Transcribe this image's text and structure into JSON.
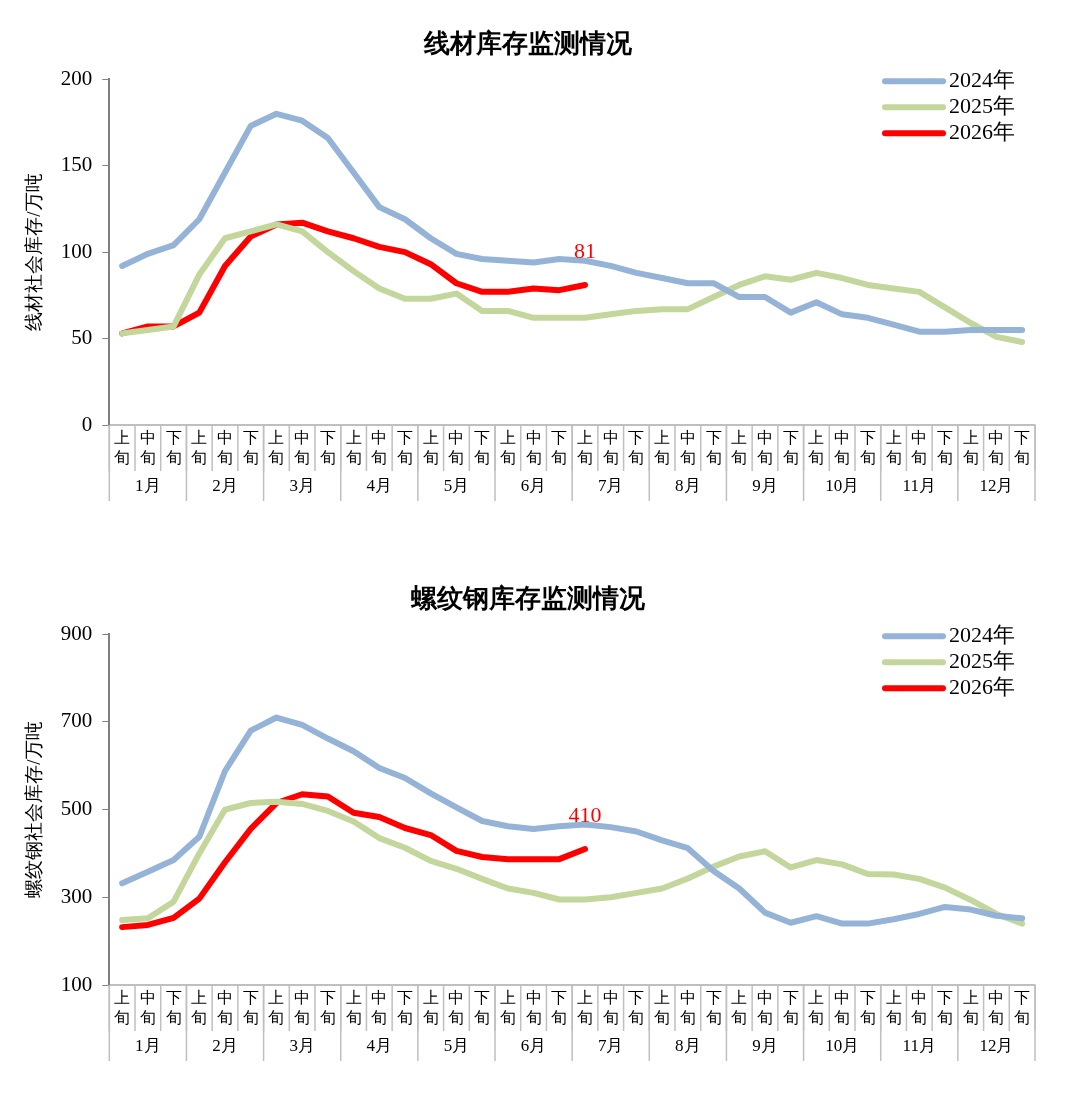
{
  "chart_data": [
    {
      "type": "line",
      "title": "线材库存监测情况",
      "ylabel": "线材社会库存/万吨",
      "categories": [
        "上旬",
        "中旬",
        "下旬",
        "上旬",
        "中旬",
        "下旬",
        "上旬",
        "中旬",
        "下旬",
        "上旬",
        "中旬",
        "下旬",
        "上旬",
        "中旬",
        "下旬",
        "上旬",
        "中旬",
        "下旬",
        "上旬",
        "中旬",
        "下旬",
        "上旬",
        "中旬",
        "下旬",
        "上旬",
        "中旬",
        "下旬",
        "上旬",
        "中旬",
        "下旬",
        "上旬",
        "中旬",
        "下旬",
        "上旬",
        "中旬",
        "下旬"
      ],
      "annotations": [
        "1月",
        "2月",
        "3月",
        "4月",
        "5月",
        "6月",
        "7月",
        "8月",
        "9月",
        "10月",
        "11月",
        "12月"
      ],
      "series": [
        {
          "name": "2024年",
          "color": "#95b3d7",
          "values": [
            92,
            99,
            104,
            119,
            146,
            173,
            180,
            176,
            166,
            146,
            126,
            119,
            108,
            99,
            96,
            95,
            94,
            96,
            95,
            92,
            88,
            85,
            82,
            82,
            74,
            74,
            65,
            71,
            64,
            62,
            58,
            54,
            54,
            55,
            55,
            55
          ]
        },
        {
          "name": "2025年",
          "color": "#c3d69b",
          "values": [
            53,
            55,
            57,
            87,
            108,
            112,
            116,
            112,
            100,
            89,
            79,
            73,
            73,
            76,
            66,
            66,
            62,
            62,
            62,
            64,
            66,
            67,
            67,
            74,
            81,
            86,
            84,
            88,
            85,
            81,
            79,
            77,
            68,
            59,
            51,
            48
          ]
        },
        {
          "name": "2026年",
          "color": "#ff0000",
          "values": [
            53,
            57,
            57,
            65,
            92,
            109,
            116,
            117,
            112,
            108,
            103,
            100,
            93,
            82,
            77,
            77,
            79,
            78,
            81,
            null,
            null,
            null,
            null,
            null,
            null,
            null,
            null,
            null,
            null,
            null,
            null,
            null,
            null,
            null,
            null,
            null
          ],
          "value_labels": [
            null,
            null,
            null,
            null,
            null,
            null,
            null,
            null,
            null,
            null,
            null,
            null,
            null,
            null,
            null,
            null,
            null,
            null,
            "81",
            null,
            null,
            null,
            null,
            null,
            null,
            null,
            null,
            null,
            null,
            null,
            null,
            null,
            null,
            null,
            null,
            null
          ]
        }
      ],
      "ylim": [
        0,
        200
      ],
      "yticks": [
        0,
        50,
        100,
        150,
        200
      ],
      "grid": false,
      "legend": "top right",
      "marker": "none",
      "line_style": "solid"
    },
    {
      "type": "line",
      "title": "螺纹钢库存监测情况",
      "ylabel": "螺纹钢社会库存/万吨",
      "categories": [
        "上旬",
        "中旬",
        "下旬",
        "上旬",
        "中旬",
        "下旬",
        "上旬",
        "中旬",
        "下旬",
        "上旬",
        "中旬",
        "下旬",
        "上旬",
        "中旬",
        "下旬",
        "上旬",
        "中旬",
        "下旬",
        "上旬",
        "中旬",
        "下旬",
        "上旬",
        "中旬",
        "下旬",
        "上旬",
        "中旬",
        "下旬",
        "上旬",
        "中旬",
        "下旬",
        "上旬",
        "中旬",
        "下旬",
        "上旬",
        "中旬",
        "下旬"
      ],
      "annotations": [
        "1月",
        "2月",
        "3月",
        "4月",
        "5月",
        "6月",
        "7月",
        "8月",
        "9月",
        "10月",
        "11月",
        "12月"
      ],
      "series": [
        {
          "name": "2024年",
          "color": "#95b3d7",
          "values": [
            332,
            358,
            385,
            438,
            588,
            680,
            710,
            693,
            662,
            633,
            595,
            572,
            537,
            505,
            474,
            462,
            456,
            462,
            466,
            460,
            450,
            430,
            412,
            360,
            320,
            265,
            242,
            257,
            240,
            240,
            250,
            262,
            278,
            272,
            258,
            252
          ]
        },
        {
          "name": "2025年",
          "color": "#c3d69b",
          "values": [
            248,
            252,
            290,
            400,
            500,
            515,
            518,
            513,
            497,
            473,
            435,
            413,
            383,
            365,
            342,
            320,
            310,
            295,
            295,
            300,
            310,
            320,
            343,
            370,
            393,
            405,
            368,
            385,
            375,
            353,
            352,
            342,
            322,
            294,
            262,
            240
          ]
        },
        {
          "name": "2026年",
          "color": "#ff0000",
          "values": [
            232,
            237,
            253,
            297,
            380,
            456,
            515,
            535,
            530,
            493,
            483,
            458,
            442,
            406,
            392,
            387,
            387,
            387,
            410,
            null,
            null,
            null,
            null,
            null,
            null,
            null,
            null,
            null,
            null,
            null,
            null,
            null,
            null,
            null,
            null,
            null
          ],
          "value_labels": [
            null,
            null,
            null,
            null,
            null,
            null,
            null,
            null,
            null,
            null,
            null,
            null,
            null,
            null,
            null,
            null,
            null,
            null,
            "410",
            null,
            null,
            null,
            null,
            null,
            null,
            null,
            null,
            null,
            null,
            null,
            null,
            null,
            null,
            null,
            null,
            null
          ]
        }
      ],
      "ylim": [
        100,
        900
      ],
      "yticks": [
        100,
        300,
        500,
        700,
        900
      ],
      "grid": false,
      "legend": "top right",
      "marker": "none",
      "line_style": "solid"
    }
  ]
}
